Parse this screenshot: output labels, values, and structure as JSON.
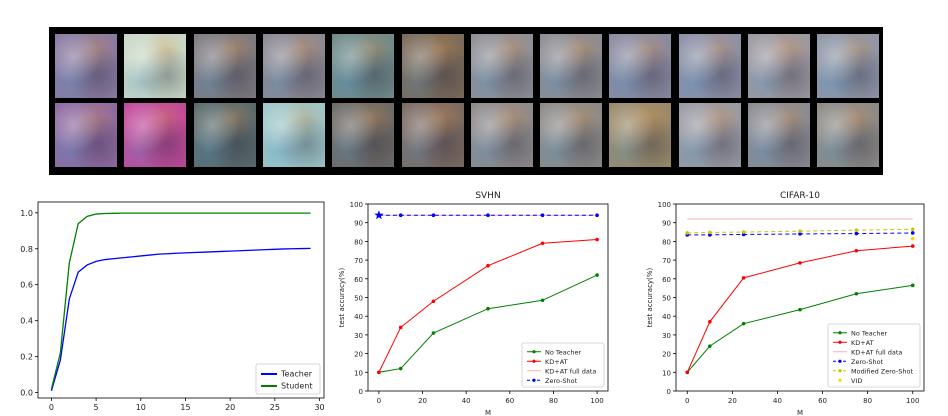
{
  "image_strip": {
    "rows": 2,
    "columns": 12,
    "tile_colors": [
      [
        "#8a7aa0",
        "#c9d8c6",
        "#7d7a80",
        "#8b8892",
        "#6f8a8a",
        "#7a6a5a",
        "#8e8f95",
        "#8c8c92",
        "#8a8aa0",
        "#8c90a6",
        "#9c98a0",
        "#8e96a6"
      ],
      [
        "#8e6aa0",
        "#c04a9a",
        "#5a6a6c",
        "#9ec6c8",
        "#6e6a66",
        "#7c6a62",
        "#8e8a8c",
        "#8c8a88",
        "#9a8a6a",
        "#9a9aa2",
        "#8a8a92",
        "#8c8a86"
      ]
    ]
  },
  "chart_data": [
    {
      "type": "line",
      "title": "",
      "xlabel": "",
      "ylabel": "",
      "xlim": [
        -1.5,
        30.5
      ],
      "ylim": [
        -0.03,
        1.06
      ],
      "xticks": [
        "0",
        "5",
        "10",
        "15",
        "20",
        "25",
        "30"
      ],
      "yticks": [
        "0.0",
        "0.2",
        "0.4",
        "0.6",
        "0.8",
        "1.0"
      ],
      "legend_position": "bottom-right",
      "x": [
        0,
        1,
        2,
        3,
        4,
        5,
        6,
        7,
        8,
        9,
        10,
        11,
        12,
        13,
        14,
        15,
        16,
        17,
        18,
        19,
        20,
        21,
        22,
        23,
        24,
        25,
        26,
        27,
        28,
        29
      ],
      "series": [
        {
          "name": "Teacher",
          "color": "#0000ff",
          "values": [
            0.01,
            0.18,
            0.52,
            0.67,
            0.71,
            0.73,
            0.74,
            0.745,
            0.75,
            0.755,
            0.76,
            0.765,
            0.77,
            0.772,
            0.775,
            0.777,
            0.779,
            0.781,
            0.783,
            0.785,
            0.787,
            0.789,
            0.791,
            0.793,
            0.795,
            0.797,
            0.799,
            0.8,
            0.801,
            0.802
          ]
        },
        {
          "name": "Student",
          "color": "#008000",
          "values": [
            0.02,
            0.22,
            0.72,
            0.94,
            0.98,
            0.993,
            0.996,
            0.997,
            0.998,
            0.998,
            0.998,
            0.998,
            0.998,
            0.998,
            0.998,
            0.998,
            0.998,
            0.998,
            0.998,
            0.998,
            0.998,
            0.998,
            0.998,
            0.998,
            0.998,
            0.998,
            0.998,
            0.998,
            0.998,
            0.998
          ]
        }
      ]
    },
    {
      "type": "line",
      "title": "SVHN",
      "xlabel": "M",
      "ylabel": "test accuracy(%)",
      "xlim": [
        -5,
        105
      ],
      "ylim": [
        0,
        100
      ],
      "xticks": [
        "0",
        "20",
        "40",
        "60",
        "80",
        "100"
      ],
      "yticks": [
        "0",
        "10",
        "20",
        "30",
        "40",
        "50",
        "60",
        "70",
        "80",
        "90",
        "100"
      ],
      "legend_position": "bottom-right",
      "series": [
        {
          "name": "No Teacher",
          "color": "#008000",
          "style": "solid-dot",
          "x": [
            0,
            10,
            25,
            50,
            75,
            100
          ],
          "values": [
            10,
            12,
            31,
            44,
            48.5,
            62
          ]
        },
        {
          "name": "KD+AT",
          "color": "#ff0000",
          "style": "solid-dot",
          "x": [
            0,
            10,
            25,
            50,
            75,
            100
          ],
          "values": [
            10,
            34,
            48,
            67,
            79,
            81
          ]
        },
        {
          "name": "KD+AT full data",
          "color": "#f4b0b0",
          "style": "solid",
          "x": [
            0,
            100
          ],
          "values": [
            94,
            94
          ]
        },
        {
          "name": "Zero-Shot",
          "color": "#0000ff",
          "style": "dashed-dot",
          "x": [
            0,
            10,
            25,
            50,
            75,
            100
          ],
          "values": [
            94,
            94,
            94,
            94,
            94,
            94
          ]
        }
      ],
      "annotation": {
        "x": 0,
        "y": 94,
        "marker": "star",
        "color": "#0000ff"
      }
    },
    {
      "type": "line",
      "title": "CIFAR-10",
      "xlabel": "M",
      "ylabel": "test accuracy(%)",
      "xlim": [
        -5,
        105
      ],
      "ylim": [
        0,
        100
      ],
      "xticks": [
        "0",
        "20",
        "40",
        "60",
        "80",
        "100"
      ],
      "yticks": [
        "0",
        "10",
        "20",
        "30",
        "40",
        "50",
        "60",
        "70",
        "80",
        "90",
        "100"
      ],
      "legend_position": "bottom-right",
      "series": [
        {
          "name": "No Teacher",
          "color": "#008000",
          "style": "solid-dot",
          "x": [
            0,
            10,
            25,
            50,
            75,
            100
          ],
          "values": [
            10,
            24,
            36,
            43.5,
            52,
            56.5
          ]
        },
        {
          "name": "KD+AT",
          "color": "#ff0000",
          "style": "solid-dot",
          "x": [
            0,
            10,
            25,
            50,
            75,
            100
          ],
          "values": [
            10,
            37,
            60.5,
            68.5,
            75,
            77.5
          ]
        },
        {
          "name": "KD+AT full data",
          "color": "#f4b0b0",
          "style": "solid",
          "x": [
            0,
            100
          ],
          "values": [
            92,
            92
          ]
        },
        {
          "name": "Zero-Shot",
          "color": "#0000ff",
          "style": "dashed-dot",
          "x": [
            0,
            10,
            25,
            50,
            75,
            100
          ],
          "values": [
            83.5,
            83.5,
            83.7,
            84,
            84.2,
            84.5
          ]
        },
        {
          "name": "Modified Zero-Shot",
          "color": "#c8c800",
          "style": "dashed-dot",
          "x": [
            0,
            10,
            25,
            50,
            75,
            100
          ],
          "values": [
            84.5,
            84.8,
            85,
            85.5,
            86,
            86.5
          ]
        },
        {
          "name": "VID",
          "color": "#ffd700",
          "style": "dot",
          "x": [
            100
          ],
          "values": [
            81.5
          ]
        }
      ]
    }
  ]
}
